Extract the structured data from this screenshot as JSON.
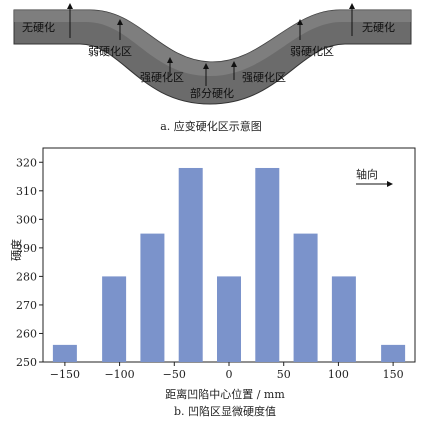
{
  "diagram": {
    "labels": {
      "no_harden_left": "无硬化",
      "no_harden_right": "无硬化",
      "weak_left": "弱硬化区",
      "weak_right": "弱硬化区",
      "strong_left": "强硬化区",
      "strong_right": "强硬化区",
      "partial": "部分硬化"
    },
    "caption": "a. 应变硬化区示意图",
    "colors": {
      "body": "#6b6b6b",
      "top_band": "#8a8a8a",
      "stroke": "#333333"
    }
  },
  "chart_data": {
    "type": "bar",
    "x": [
      -150,
      -105,
      -70,
      -35,
      0,
      35,
      70,
      105,
      150
    ],
    "values": [
      256,
      280,
      295,
      318,
      280,
      318,
      295,
      280,
      256
    ],
    "xlabel": "距离凹陷中心位置 / mm",
    "ylabel": "硬度",
    "xlim": [
      -170,
      170
    ],
    "ylim": [
      250,
      325
    ],
    "xticks": [
      -150,
      -100,
      -50,
      0,
      50,
      100,
      150
    ],
    "yticks": [
      250,
      260,
      270,
      280,
      290,
      300,
      310,
      320
    ],
    "annotation": "轴向",
    "caption": "b. 凹陷区显微硬度值",
    "bar_color": "#7b93cb",
    "grid": false
  }
}
